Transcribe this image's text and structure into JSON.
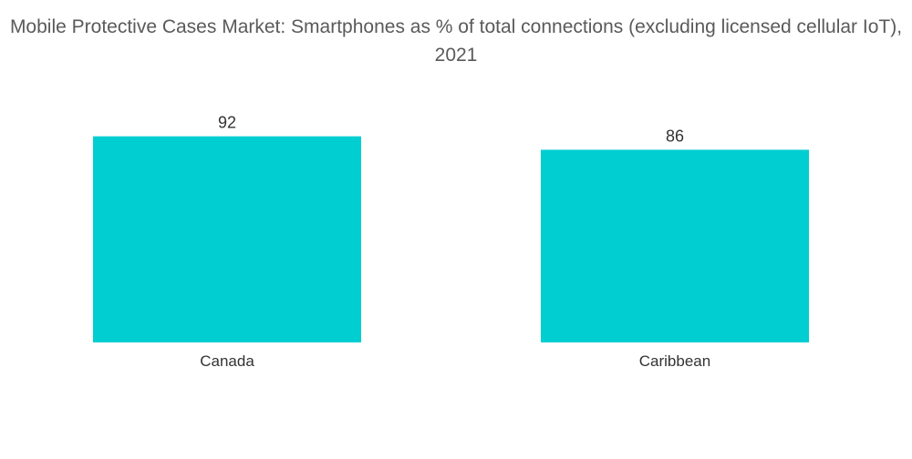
{
  "chart_data": {
    "type": "bar",
    "title": "Mobile Protective Cases Market: Smartphones as % of total connections (excluding licensed cellular IoT), 2021",
    "categories": [
      "Canada",
      "Caribbean"
    ],
    "values": [
      92,
      86
    ],
    "xlabel": "",
    "ylabel": "",
    "ylim": [
      0,
      100
    ],
    "grid": false,
    "legend": "none",
    "bar_color": "#00ced1",
    "text_color": "#333333"
  }
}
